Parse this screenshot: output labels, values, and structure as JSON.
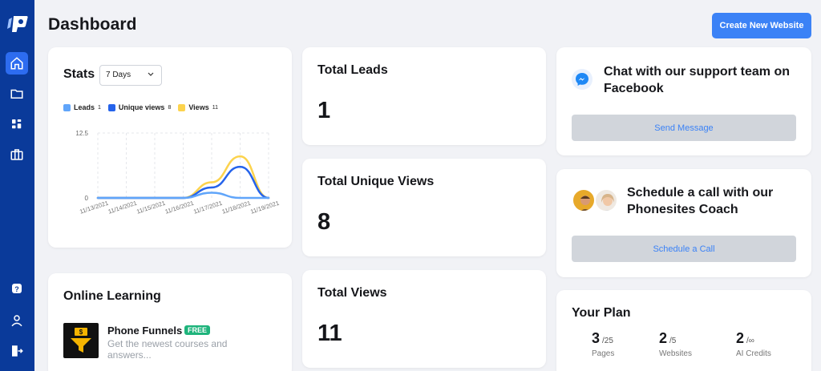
{
  "sidebar": {
    "items": [
      {
        "icon": "home-icon",
        "active": true
      },
      {
        "icon": "folder-icon",
        "active": false
      },
      {
        "icon": "apps-icon",
        "active": false
      },
      {
        "icon": "briefcase-icon",
        "active": false
      }
    ],
    "bottom": [
      {
        "icon": "help-icon"
      },
      {
        "icon": "user-icon"
      },
      {
        "icon": "logout-icon"
      }
    ],
    "accent": "#0a3a9a",
    "active_color": "#2d6cf0"
  },
  "header": {
    "title": "Dashboard",
    "create_button": "Create New Website"
  },
  "stats": {
    "title": "Stats",
    "range": "7 Days",
    "legend": [
      {
        "label": "Leads",
        "count": "1",
        "color": "#60a5fa"
      },
      {
        "label": "Unique views",
        "count": "8",
        "color": "#2563eb"
      },
      {
        "label": "Views",
        "count": "11",
        "color": "#fcd34d"
      }
    ]
  },
  "chart_data": {
    "type": "line",
    "x": [
      "11/13/2021",
      "11/14/2021",
      "11/15/2021",
      "11/16/2021",
      "11/17/2021",
      "11/18/2021",
      "11/19/2021"
    ],
    "yticks": [
      "12.5",
      "0"
    ],
    "ylim": [
      0,
      12.5
    ],
    "grid": true,
    "series": [
      {
        "name": "Views",
        "color": "#fcd34d",
        "values": [
          0,
          0,
          0,
          0,
          3,
          8,
          0
        ]
      },
      {
        "name": "Unique views",
        "color": "#2563eb",
        "values": [
          0,
          0,
          0,
          0,
          2,
          6,
          0
        ]
      },
      {
        "name": "Leads",
        "color": "#60a5fa",
        "values": [
          0,
          0,
          0,
          0,
          1,
          0,
          0
        ]
      }
    ]
  },
  "metrics": [
    {
      "label": "Total Leads",
      "value": "1"
    },
    {
      "label": "Total Unique Views",
      "value": "8"
    },
    {
      "label": "Total Views",
      "value": "11"
    }
  ],
  "support": {
    "title": "Chat with our support team on Facebook",
    "button": "Send Message"
  },
  "schedule": {
    "title": "Schedule a call with our Phonesites Coach",
    "button": "Schedule a Call"
  },
  "learning": {
    "title": "Online Learning",
    "course_name": "Phone Funnels",
    "badge": "FREE",
    "description": "Get the newest courses and answers..."
  },
  "plan": {
    "title": "Your Plan",
    "stats": [
      {
        "value": "3",
        "of": "/25",
        "label": "Pages"
      },
      {
        "value": "2",
        "of": "/5",
        "label": "Websites"
      },
      {
        "value": "2",
        "of": "/∞",
        "label": "AI Credits"
      }
    ]
  }
}
